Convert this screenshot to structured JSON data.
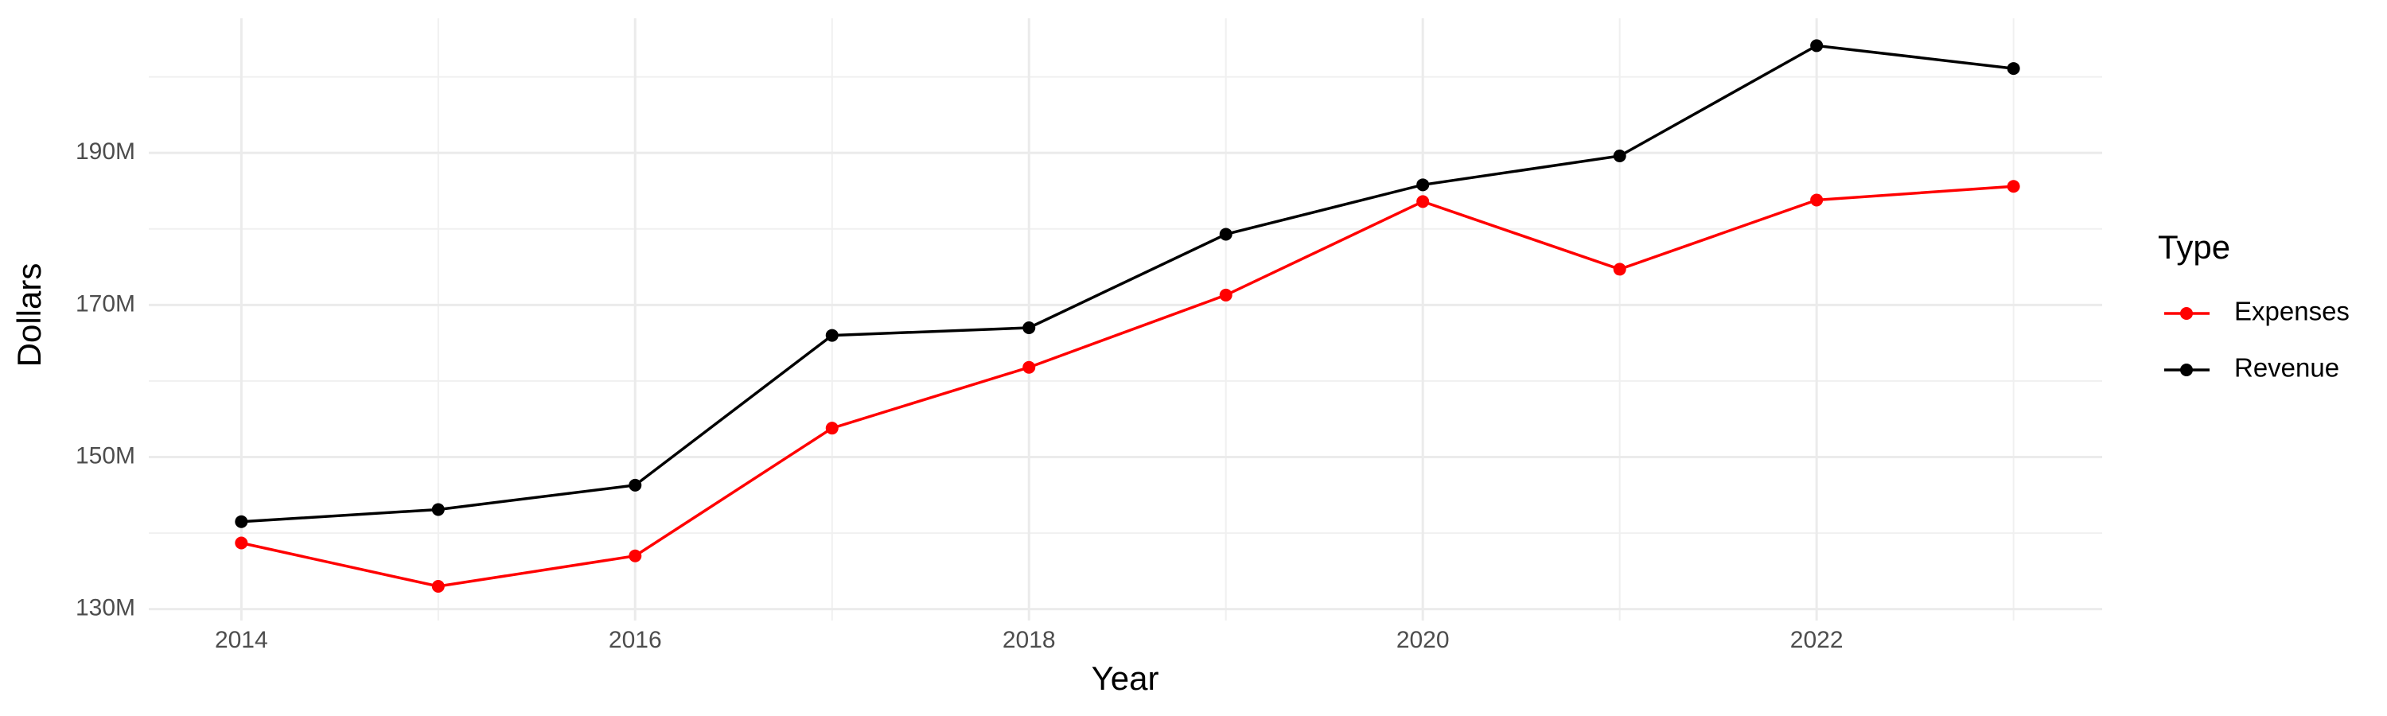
{
  "chart_data": {
    "type": "line",
    "x_label": "Year",
    "y_label": "Dollars",
    "legend_title": "Type",
    "x": [
      2014,
      2015,
      2016,
      2017,
      2018,
      2019,
      2020,
      2021,
      2022,
      2023
    ],
    "series": [
      {
        "name": "Expenses",
        "color": "#ff0000",
        "values": [
          138700000,
          133000000,
          137000000,
          153800000,
          161800000,
          171300000,
          183600000,
          174700000,
          183800000,
          185600000
        ]
      },
      {
        "name": "Revenue",
        "color": "#000000",
        "values": [
          141500000,
          143100000,
          146300000,
          166000000,
          167000000,
          179300000,
          185800000,
          189600000,
          204100000,
          201100000
        ]
      }
    ],
    "xlim": [
      2013.53,
      2023.45
    ],
    "xticks": [
      2014,
      2016,
      2018,
      2020,
      2022
    ],
    "x_minor_ticks": [
      2015,
      2017,
      2019,
      2021,
      2023
    ],
    "ylim": [
      128500000,
      207700000
    ],
    "yticks": [
      {
        "value": 130000000,
        "label": "130M"
      },
      {
        "value": 150000000,
        "label": "150M"
      },
      {
        "value": 170000000,
        "label": "170M"
      },
      {
        "value": 190000000,
        "label": "190M"
      }
    ],
    "y_minor_ticks": [
      140000000,
      160000000,
      180000000,
      200000000
    ],
    "grid": true,
    "legend_position": "right"
  }
}
